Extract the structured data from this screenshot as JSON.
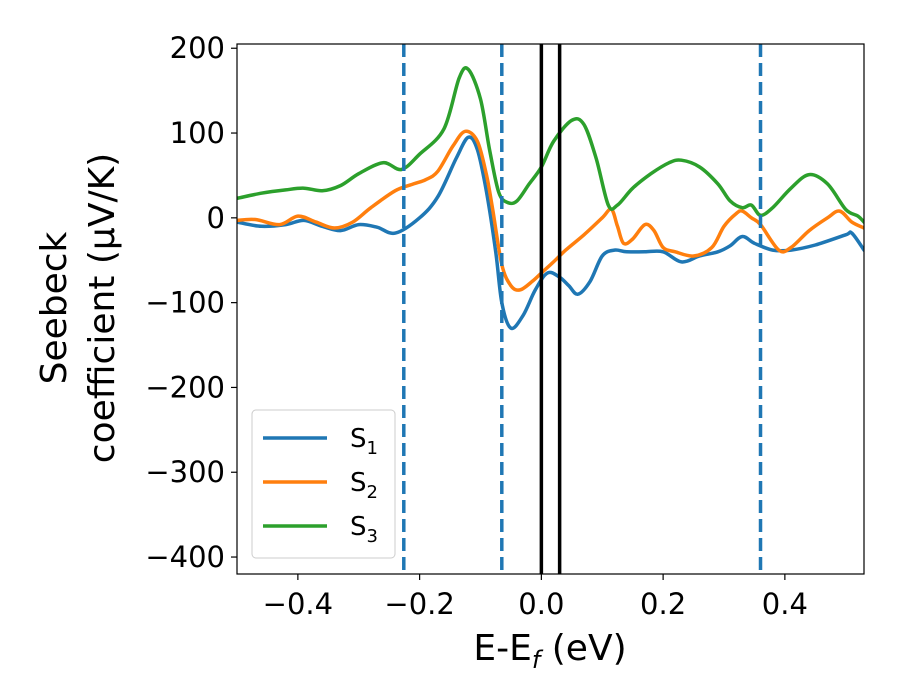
{
  "chart_data": {
    "type": "line",
    "xlabel": {
      "main": "E-E",
      "sub": "f",
      "tail": " (eV)"
    },
    "ylabel": {
      "line1": "Seebeck",
      "line2": "coefficient  (μV/K)"
    },
    "xlim": [
      -0.5,
      0.53
    ],
    "ylim": [
      -420,
      205
    ],
    "x_ticks": [
      -0.4,
      -0.2,
      0.0,
      0.2,
      0.4
    ],
    "x_tick_labels": [
      "−0.4",
      "−0.2",
      "0.0",
      "0.2",
      "0.4"
    ],
    "y_ticks": [
      200,
      100,
      0,
      -100,
      -200,
      -300,
      -400
    ],
    "y_tick_labels": [
      "200",
      "100",
      "0",
      "−100",
      "−200",
      "−300",
      "−400"
    ],
    "grid": false,
    "legend_position": "bottom-left",
    "vlines": [
      {
        "x": -0.226,
        "style": "dashed",
        "color": "#1f77b4"
      },
      {
        "x": -0.065,
        "style": "dashed",
        "color": "#1f77b4"
      },
      {
        "x": 0.0,
        "style": "solid",
        "color": "#000000"
      },
      {
        "x": 0.03,
        "style": "solid",
        "color": "#000000"
      },
      {
        "x": 0.36,
        "style": "dashed",
        "color": "#1f77b4"
      }
    ],
    "series": [
      {
        "name": "S",
        "sub": "1",
        "color": "#1f77b4",
        "points": [
          [
            -0.5,
            -5
          ],
          [
            -0.46,
            -10
          ],
          [
            -0.42,
            -8
          ],
          [
            -0.39,
            -3
          ],
          [
            -0.36,
            -10
          ],
          [
            -0.33,
            -15
          ],
          [
            -0.3,
            -8
          ],
          [
            -0.27,
            -11
          ],
          [
            -0.24,
            -18
          ],
          [
            -0.2,
            0
          ],
          [
            -0.17,
            25
          ],
          [
            -0.14,
            70
          ],
          [
            -0.12,
            95
          ],
          [
            -0.105,
            80
          ],
          [
            -0.09,
            30
          ],
          [
            -0.075,
            -40
          ],
          [
            -0.065,
            -100
          ],
          [
            -0.05,
            -130
          ],
          [
            -0.03,
            -115
          ],
          [
            -0.01,
            -85
          ],
          [
            0.01,
            -65
          ],
          [
            0.03,
            -70
          ],
          [
            0.045,
            -80
          ],
          [
            0.06,
            -90
          ],
          [
            0.08,
            -75
          ],
          [
            0.1,
            -45
          ],
          [
            0.12,
            -38
          ],
          [
            0.14,
            -40
          ],
          [
            0.17,
            -40
          ],
          [
            0.2,
            -40
          ],
          [
            0.23,
            -52
          ],
          [
            0.26,
            -45
          ],
          [
            0.29,
            -40
          ],
          [
            0.31,
            -33
          ],
          [
            0.33,
            -22
          ],
          [
            0.35,
            -30
          ],
          [
            0.38,
            -38
          ],
          [
            0.41,
            -38
          ],
          [
            0.45,
            -32
          ],
          [
            0.5,
            -20
          ],
          [
            0.51,
            -18
          ],
          [
            0.53,
            -38
          ]
        ]
      },
      {
        "name": "S",
        "sub": "2",
        "color": "#ff7f0e",
        "points": [
          [
            -0.5,
            -3
          ],
          [
            -0.47,
            -2
          ],
          [
            -0.43,
            -8
          ],
          [
            -0.4,
            2
          ],
          [
            -0.37,
            -5
          ],
          [
            -0.34,
            -12
          ],
          [
            -0.31,
            -5
          ],
          [
            -0.28,
            12
          ],
          [
            -0.24,
            32
          ],
          [
            -0.21,
            40
          ],
          [
            -0.19,
            45
          ],
          [
            -0.17,
            55
          ],
          [
            -0.145,
            85
          ],
          [
            -0.125,
            102
          ],
          [
            -0.105,
            90
          ],
          [
            -0.09,
            50
          ],
          [
            -0.08,
            10
          ],
          [
            -0.065,
            -55
          ],
          [
            -0.05,
            -80
          ],
          [
            -0.035,
            -85
          ],
          [
            -0.015,
            -75
          ],
          [
            0.0,
            -65
          ],
          [
            0.02,
            -52
          ],
          [
            0.04,
            -38
          ],
          [
            0.07,
            -20
          ],
          [
            0.1,
            0
          ],
          [
            0.115,
            10
          ],
          [
            0.125,
            -10
          ],
          [
            0.135,
            -30
          ],
          [
            0.15,
            -25
          ],
          [
            0.17,
            -8
          ],
          [
            0.185,
            -15
          ],
          [
            0.2,
            -35
          ],
          [
            0.22,
            -40
          ],
          [
            0.25,
            -45
          ],
          [
            0.28,
            -35
          ],
          [
            0.3,
            -10
          ],
          [
            0.32,
            5
          ],
          [
            0.33,
            8
          ],
          [
            0.345,
            0
          ],
          [
            0.36,
            -8
          ],
          [
            0.39,
            -38
          ],
          [
            0.41,
            -35
          ],
          [
            0.44,
            -15
          ],
          [
            0.47,
            0
          ],
          [
            0.49,
            8
          ],
          [
            0.51,
            -5
          ],
          [
            0.53,
            -12
          ]
        ]
      },
      {
        "name": "S",
        "sub": "3",
        "color": "#2ca02c",
        "points": [
          [
            -0.5,
            23
          ],
          [
            -0.46,
            29
          ],
          [
            -0.42,
            33
          ],
          [
            -0.39,
            35
          ],
          [
            -0.36,
            32
          ],
          [
            -0.33,
            38
          ],
          [
            -0.3,
            52
          ],
          [
            -0.26,
            65
          ],
          [
            -0.23,
            57
          ],
          [
            -0.2,
            75
          ],
          [
            -0.16,
            105
          ],
          [
            -0.135,
            165
          ],
          [
            -0.12,
            175
          ],
          [
            -0.1,
            140
          ],
          [
            -0.085,
            80
          ],
          [
            -0.07,
            30
          ],
          [
            -0.055,
            18
          ],
          [
            -0.04,
            20
          ],
          [
            -0.02,
            40
          ],
          [
            0.0,
            60
          ],
          [
            0.02,
            90
          ],
          [
            0.05,
            115
          ],
          [
            0.07,
            110
          ],
          [
            0.09,
            70
          ],
          [
            0.11,
            15
          ],
          [
            0.125,
            15
          ],
          [
            0.15,
            35
          ],
          [
            0.18,
            52
          ],
          [
            0.21,
            65
          ],
          [
            0.23,
            68
          ],
          [
            0.26,
            60
          ],
          [
            0.29,
            40
          ],
          [
            0.31,
            20
          ],
          [
            0.33,
            12
          ],
          [
            0.345,
            15
          ],
          [
            0.36,
            3
          ],
          [
            0.38,
            12
          ],
          [
            0.41,
            35
          ],
          [
            0.44,
            51
          ],
          [
            0.47,
            40
          ],
          [
            0.5,
            10
          ],
          [
            0.52,
            2
          ],
          [
            0.53,
            -5
          ]
        ]
      }
    ]
  }
}
